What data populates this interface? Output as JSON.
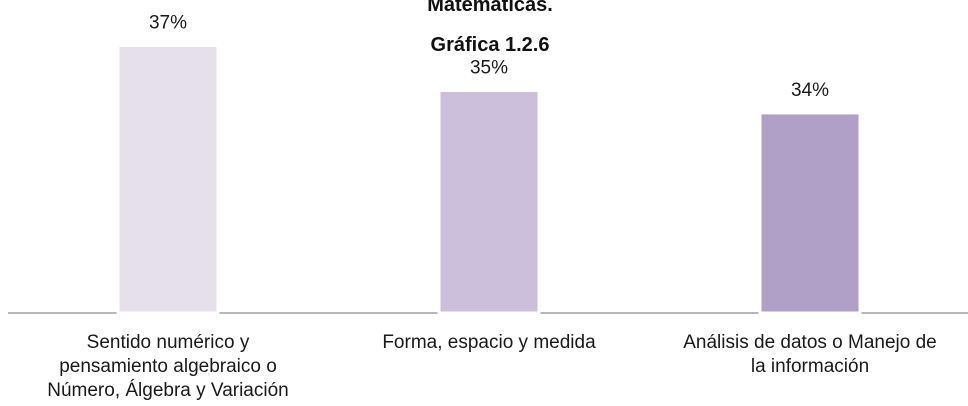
{
  "chart_data": {
    "type": "bar",
    "title_lines": [
      "Matemáticas.",
      "Gráfica 1.2.6"
    ],
    "categories": [
      "Sentido numérico y pensamiento algebraico o Número, Álgebra y Variación",
      "Forma, espacio y medida",
      "Análisis de datos o Manejo de la información"
    ],
    "category_label_lines": [
      [
        "Sentido numérico y",
        "pensamiento algebraico o",
        "Número, Álgebra y Variación"
      ],
      [
        "Forma, espacio y medida"
      ],
      [
        "Análisis de datos o Manejo de",
        "la información"
      ]
    ],
    "values": [
      37,
      35,
      34
    ],
    "value_labels": [
      "37%",
      "35%",
      "34%"
    ],
    "bar_colors": [
      "#e6dfec",
      "#cbbfdb",
      "#b09fc6"
    ],
    "ylim": [
      25.1,
      37.2
    ],
    "grid": false,
    "legend": "none"
  }
}
